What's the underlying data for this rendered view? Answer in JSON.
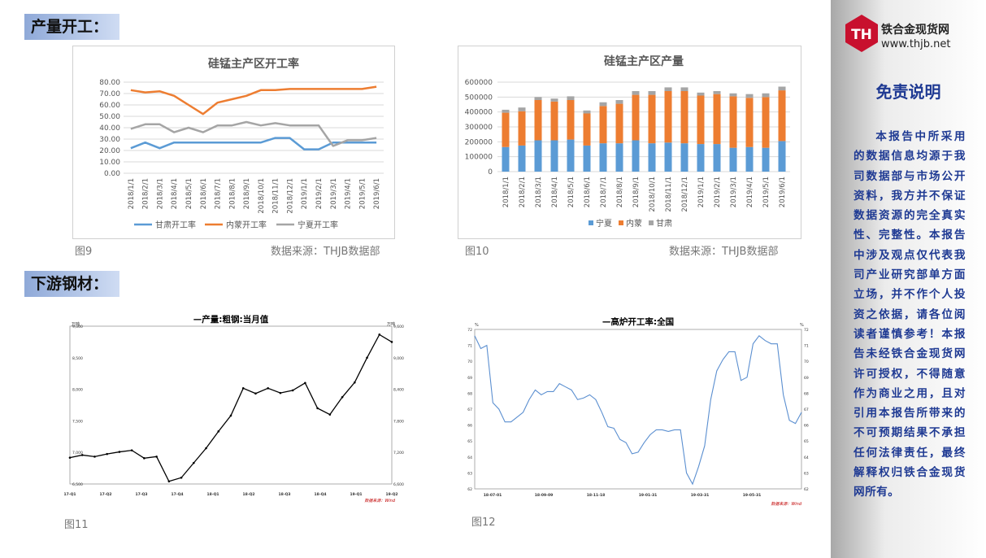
{
  "sections": {
    "production_label": "产量开工：",
    "downstream_label": "下游钢材："
  },
  "colors": {
    "gansu": "#5b9bd5",
    "neimeng": "#ed7d31",
    "ningxia": "#a5a5a5",
    "black_line": "#000000",
    "blue_line": "#5b8fd0",
    "sidebar_text": "#1f3a93",
    "logo_red": "#c8102e"
  },
  "figures": {
    "fig9": {
      "label": "图9",
      "source": "数据来源：THJB数据部"
    },
    "fig10": {
      "label": "图10",
      "source": "数据来源：THJB数据部"
    },
    "fig11": {
      "label": "图11"
    },
    "fig12": {
      "label": "图12"
    }
  },
  "chart_data": [
    {
      "id": "fig9",
      "type": "line",
      "title": "硅锰主产区开工率",
      "x": [
        "2018/1/1",
        "2018/2/1",
        "2018/3/1",
        "2018/4/1",
        "2018/5/1",
        "2018/6/1",
        "2018/7/1",
        "2018/8/1",
        "2018/9/1",
        "2018/10/1",
        "2018/11/1",
        "2018/12/1",
        "2019/1/1",
        "2019/2/1",
        "2019/3/1",
        "2019/4/1",
        "2019/5/1",
        "2019/6/1"
      ],
      "series": [
        {
          "name": "甘肃开工率",
          "color": "#5b9bd5",
          "values": [
            22,
            27,
            22,
            27,
            27,
            27,
            27,
            27,
            27,
            27,
            31,
            31,
            21,
            21,
            27,
            27,
            27,
            27
          ]
        },
        {
          "name": "内蒙开工率",
          "color": "#ed7d31",
          "values": [
            73,
            71,
            72,
            68,
            60,
            52,
            62,
            65,
            68,
            73,
            73,
            74,
            74,
            74,
            74,
            74,
            74,
            76
          ]
        },
        {
          "name": "宁夏开工率",
          "color": "#a5a5a5",
          "values": [
            39,
            43,
            43,
            36,
            40,
            36,
            42,
            42,
            45,
            42,
            44,
            42,
            42,
            42,
            24,
            29,
            29,
            31
          ]
        }
      ],
      "y_ticks": [
        "0.00",
        "10.00",
        "20.00",
        "30.00",
        "40.00",
        "50.00",
        "60.00",
        "70.00",
        "80.00"
      ],
      "ylim": [
        0,
        80
      ],
      "legend": "bottom",
      "grid": true
    },
    {
      "id": "fig10",
      "type": "bar",
      "stacked": true,
      "title": "硅锰主产区产量",
      "categories": [
        "2018/1/1",
        "2018/2/1",
        "2018/3/1",
        "2018/4/1",
        "2018/5/1",
        "2018/6/1",
        "2018/7/1",
        "2018/8/1",
        "2018/9/1",
        "2018/10/1",
        "2018/11/1",
        "2018/12/1",
        "2019/1/1",
        "2019/2/1",
        "2019/3/1",
        "2019/4/1",
        "2019/5/1",
        "2019/6/1"
      ],
      "series": [
        {
          "name": "宁夏",
          "color": "#5b9bd5",
          "values": [
            165000,
            175000,
            210000,
            210000,
            215000,
            175000,
            190000,
            190000,
            210000,
            190000,
            195000,
            190000,
            185000,
            185000,
            160000,
            165000,
            160000,
            205000
          ]
        },
        {
          "name": "内蒙",
          "color": "#ed7d31",
          "values": [
            230000,
            230000,
            270000,
            260000,
            265000,
            215000,
            250000,
            265000,
            305000,
            325000,
            345000,
            350000,
            325000,
            335000,
            345000,
            330000,
            340000,
            340000
          ]
        },
        {
          "name": "甘肃",
          "color": "#a5a5a5",
          "values": [
            20000,
            25000,
            20000,
            20000,
            25000,
            20000,
            25000,
            25000,
            25000,
            25000,
            25000,
            25000,
            20000,
            20000,
            20000,
            25000,
            25000,
            25000
          ]
        }
      ],
      "y_ticks": [
        "0",
        "100000",
        "200000",
        "300000",
        "400000",
        "500000",
        "600000"
      ],
      "ylim": [
        0,
        600000
      ],
      "legend": "bottom",
      "grid": true
    },
    {
      "id": "fig11",
      "type": "line",
      "title": "产量:粗钢:当月值",
      "y_left_unit": "万吨",
      "y_right_unit": "万吨",
      "y_left_ticks": [
        "6,500",
        "7,000",
        "7,500",
        "8,000",
        "8,500",
        "9,000"
      ],
      "y_right_ticks": [
        "6,600",
        "7,200",
        "7,800",
        "8,400",
        "9,000",
        "9,600"
      ],
      "x_ticks": [
        "17-Q1",
        "17-Q2",
        "17-Q3",
        "17-Q4",
        "18-Q1",
        "18-Q2",
        "18-Q3",
        "18-Q4",
        "19-Q1",
        "19-Q2"
      ],
      "source_note": "数据来源：Wind",
      "series": [
        {
          "name": "产量:粗钢:当月值",
          "color": "#000000",
          "values": [
            6700,
            6750,
            6720,
            6770,
            6810,
            6840,
            6690,
            6720,
            6250,
            6320,
            6600,
            6880,
            7200,
            7500,
            8020,
            7920,
            8020,
            7930,
            7980,
            8120,
            7640,
            7520,
            7850,
            8130,
            8600,
            9040,
            8900
          ]
        }
      ],
      "ylim": [
        6200,
        9200
      ],
      "legend": "top"
    },
    {
      "id": "fig12",
      "type": "line",
      "title": "高炉开工率:全国",
      "y_left_unit": "%",
      "y_right_unit": "%",
      "y_left_ticks": [
        "62",
        "63",
        "64",
        "65",
        "66",
        "67",
        "68",
        "69",
        "70",
        "71",
        "72"
      ],
      "y_right_ticks": [
        "62",
        "63",
        "64",
        "65",
        "66",
        "67",
        "68",
        "69",
        "70",
        "71",
        "72"
      ],
      "x_ticks": [
        "18-07-01",
        "18-09-09",
        "18-11-18",
        "19-01-31",
        "19-03-31",
        "19-05-31"
      ],
      "source_note": "数据来源：Wind",
      "series": [
        {
          "name": "高炉开工率:全国",
          "color": "#5b8fd0",
          "values": [
            71.6,
            70.8,
            71,
            67.4,
            67,
            66.2,
            66.2,
            66.5,
            66.8,
            67.6,
            68.2,
            67.9,
            68.1,
            68.1,
            68.6,
            68.4,
            68.2,
            67.6,
            67.7,
            67.9,
            67.6,
            66.8,
            65.9,
            65.8,
            65.1,
            64.9,
            64.2,
            64.3,
            64.9,
            65.4,
            65.7,
            65.7,
            65.6,
            65.7,
            65.7,
            63,
            62.3,
            63.4,
            64.7,
            67.6,
            69.4,
            70.1,
            70.6,
            70.6,
            68.8,
            69,
            71.1,
            71.6,
            71.3,
            71.1,
            71.1,
            67.9,
            66.3,
            66.1,
            66.8
          ],
          "values_note": "weekly"
        }
      ],
      "ylim": [
        62,
        72
      ],
      "legend": "top"
    }
  ],
  "sidebar": {
    "logo_name": "铁合金现货网",
    "logo_url": "www.thjb.net",
    "logo_mark": "TH",
    "disclaimer_title": "免责说明",
    "disclaimer_body": "本报告中所采用的数据信息均源于我司数据部与市场公开资料，我方并不保证数据资源的完全真实性、完整性。本报告中涉及观点仅代表我司产业研究部单方面立场，并不作个人投资之依据，请各位阅读者谨慎参考！本报告未经铁合金现货网许可授权，不得随意作为商业之用，且对引用本报告所带来的不可预期结果不承担任何法律责任，最终解释权归铁合金现货网所有。"
  }
}
